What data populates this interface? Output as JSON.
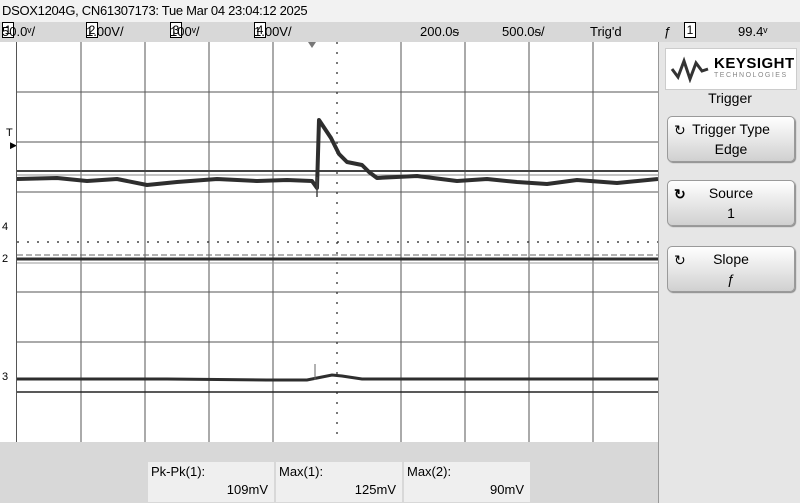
{
  "title": "DSOX1204G, CN61307173: Tue Mar 04 23:04:12 2025",
  "status": {
    "ch1_num": "1",
    "ch1_scale": "50.0ᵛ/",
    "ch2_num": "2",
    "ch2_scale": "1.00V/",
    "ch3_num": "3",
    "ch3_scale": "100ᵛ/",
    "ch4_num": "4",
    "ch4_scale": "1.00V/",
    "delay": "200.0ᵴ",
    "timebase": "500.0ᵴ/",
    "trig_state": "Trig'd",
    "slope_symbol": "ƒ",
    "trig_src": "1",
    "trig_level": "99.4ᵛ"
  },
  "markers": {
    "trigger": "T",
    "ch4": "4",
    "ch2": "2",
    "ch3": "3"
  },
  "side": {
    "brand": "KEYSIGHT",
    "brand_sub": "TECHNOLOGIES",
    "menu_title": "Trigger",
    "buttons": [
      {
        "label": "Trigger Type",
        "value": "Edge"
      },
      {
        "label": "Source",
        "value": "1"
      },
      {
        "label": "Slope",
        "value": "ƒ"
      }
    ]
  },
  "measurements": [
    {
      "label": "Pk-Pk(1):",
      "value": "109mV"
    },
    {
      "label": "Max(1):",
      "value": "125mV"
    },
    {
      "label": "Max(2):",
      "value": "90mV"
    }
  ],
  "colors": {
    "trace": "#333333",
    "grid": "#555555",
    "panel": "#e6e6e6"
  },
  "icons": [
    "keysight-wave-icon",
    "rotate-knob-icon",
    "slope-rising-icon"
  ]
}
